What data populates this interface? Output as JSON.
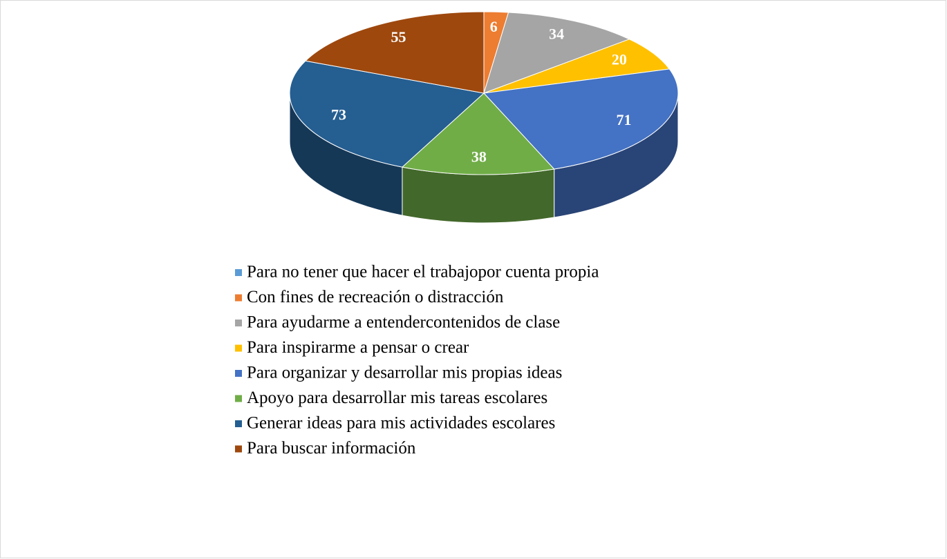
{
  "chart_data": {
    "type": "pie3d",
    "categories": [
      "Para no tener que hacer el trabajopor cuenta propia",
      "Con fines de recreación o distracción",
      "Para ayudarme a entendercontenidos de clase",
      "Para inspirarme a pensar o crear",
      "Para organizar y desarrollar mis propias ideas",
      "Apoyo para desarrollar mis tareas escolares",
      "Generar ideas para mis actividades escolares",
      "Para buscar información"
    ],
    "values": [
      0,
      6,
      34,
      20,
      71,
      38,
      73,
      55
    ],
    "colors": [
      "#5b9bd5",
      "#ed7d31",
      "#a5a5a5",
      "#ffc000",
      "#4472c4",
      "#70ad47",
      "#255e91",
      "#9e480e"
    ],
    "legend": "bottom"
  }
}
